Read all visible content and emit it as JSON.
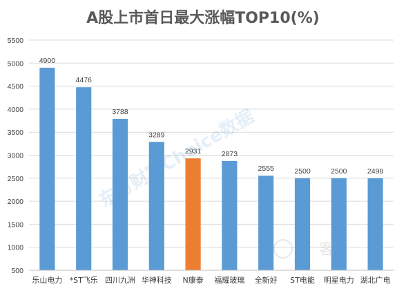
{
  "chart_data": {
    "type": "bar",
    "title": "A股上市首日最大涨幅TOP10(%)",
    "categories": [
      "乐山电力",
      "*ST飞乐",
      "四川九洲",
      "华神科技",
      "N康泰",
      "福耀玻璃",
      "全新好",
      "ST电能",
      "明星电力",
      "湖北广电"
    ],
    "values": [
      4900,
      4476,
      3788,
      3289,
      2931,
      2873,
      2555,
      2500,
      2500,
      2498
    ],
    "data_labels": [
      "4900",
      "4476",
      "3788",
      "3289",
      "2931",
      "2873",
      "2555",
      "2500",
      "2500",
      "2498"
    ],
    "ylim": [
      500,
      5500
    ],
    "yticks": [
      500,
      1000,
      1500,
      2000,
      2500,
      3000,
      3500,
      4000,
      4500,
      5000,
      5500
    ],
    "grid": true,
    "colors": {
      "default": "#5b9bd5",
      "highlight": "#ed7d31",
      "highlight_index": 4
    },
    "xlabel": "",
    "ylabel": ""
  },
  "watermark": {
    "text": "东方财富Choice数据",
    "logo_text": "客"
  }
}
